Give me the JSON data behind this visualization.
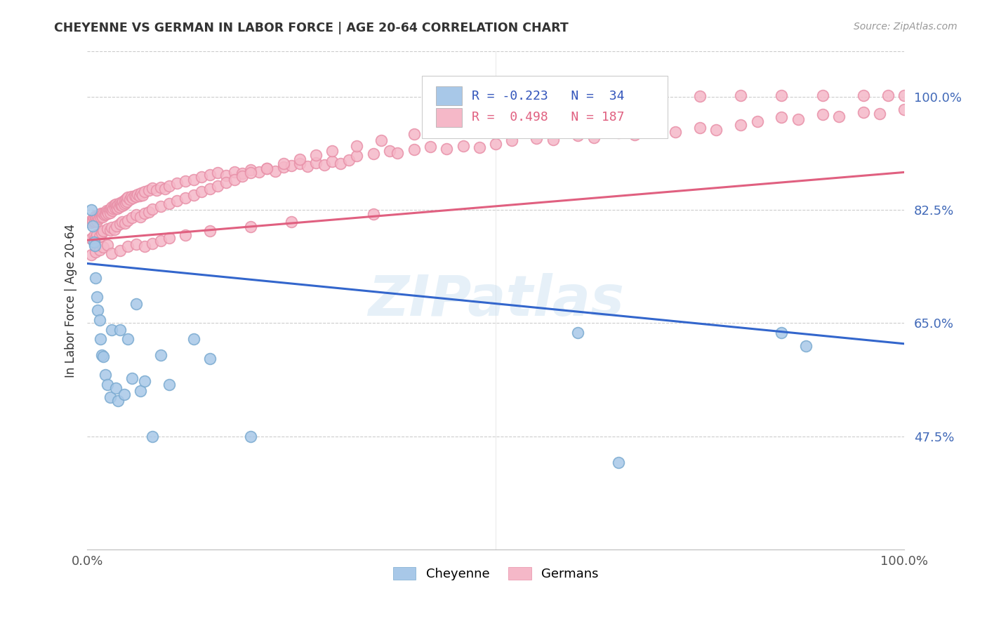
{
  "title": "CHEYENNE VS GERMAN IN LABOR FORCE | AGE 20-64 CORRELATION CHART",
  "source": "Source: ZipAtlas.com",
  "ylabel": "In Labor Force | Age 20-64",
  "xlim": [
    0.0,
    1.0
  ],
  "ylim": [
    0.3,
    1.07
  ],
  "yticks": [
    0.475,
    0.65,
    0.825,
    1.0
  ],
  "ytick_labels": [
    "47.5%",
    "65.0%",
    "82.5%",
    "100.0%"
  ],
  "xticks": [
    0.0,
    1.0
  ],
  "xtick_labels": [
    "0.0%",
    "100.0%"
  ],
  "cheyenne_color": "#a8c8e8",
  "cheyenne_edge_color": "#7aaad0",
  "german_color": "#f5b8c8",
  "german_edge_color": "#e890a8",
  "cheyenne_line_color": "#3366cc",
  "german_line_color": "#e06080",
  "watermark": "ZIPatlas",
  "cheyenne_line_start": 0.742,
  "cheyenne_line_end": 0.618,
  "german_line_start": 0.778,
  "german_line_end": 0.883,
  "cheyenne_x": [
    0.005,
    0.007,
    0.008,
    0.009,
    0.01,
    0.012,
    0.013,
    0.015,
    0.016,
    0.018,
    0.02,
    0.022,
    0.025,
    0.028,
    0.03,
    0.035,
    0.038,
    0.04,
    0.045,
    0.05,
    0.055,
    0.06,
    0.065,
    0.07,
    0.08,
    0.09,
    0.1,
    0.13,
    0.15,
    0.2,
    0.6,
    0.65,
    0.85,
    0.88
  ],
  "cheyenne_y": [
    0.825,
    0.8,
    0.775,
    0.77,
    0.72,
    0.69,
    0.67,
    0.655,
    0.625,
    0.6,
    0.598,
    0.57,
    0.555,
    0.535,
    0.64,
    0.55,
    0.53,
    0.64,
    0.54,
    0.625,
    0.565,
    0.68,
    0.545,
    0.56,
    0.475,
    0.6,
    0.555,
    0.625,
    0.595,
    0.475,
    0.635,
    0.435,
    0.635,
    0.615
  ],
  "german_x": [
    0.005,
    0.006,
    0.007,
    0.008,
    0.009,
    0.01,
    0.011,
    0.012,
    0.013,
    0.014,
    0.015,
    0.016,
    0.017,
    0.018,
    0.019,
    0.02,
    0.021,
    0.022,
    0.023,
    0.024,
    0.025,
    0.026,
    0.027,
    0.028,
    0.029,
    0.03,
    0.031,
    0.032,
    0.033,
    0.034,
    0.035,
    0.036,
    0.037,
    0.038,
    0.039,
    0.04,
    0.041,
    0.042,
    0.043,
    0.044,
    0.045,
    0.046,
    0.047,
    0.048,
    0.049,
    0.05,
    0.052,
    0.054,
    0.056,
    0.058,
    0.06,
    0.062,
    0.064,
    0.066,
    0.068,
    0.07,
    0.075,
    0.08,
    0.085,
    0.09,
    0.095,
    0.1,
    0.11,
    0.12,
    0.13,
    0.14,
    0.15,
    0.16,
    0.17,
    0.18,
    0.19,
    0.2,
    0.21,
    0.22,
    0.23,
    0.24,
    0.25,
    0.26,
    0.27,
    0.28,
    0.29,
    0.3,
    0.31,
    0.32,
    0.33,
    0.35,
    0.37,
    0.38,
    0.4,
    0.42,
    0.44,
    0.46,
    0.48,
    0.5,
    0.52,
    0.55,
    0.57,
    0.6,
    0.62,
    0.65,
    0.67,
    0.7,
    0.72,
    0.75,
    0.77,
    0.8,
    0.82,
    0.85,
    0.87,
    0.9,
    0.92,
    0.95,
    0.97,
    1.0,
    0.005,
    0.008,
    0.01,
    0.012,
    0.015,
    0.018,
    0.02,
    0.025,
    0.028,
    0.03,
    0.033,
    0.036,
    0.04,
    0.043,
    0.046,
    0.05,
    0.055,
    0.06,
    0.065,
    0.07,
    0.075,
    0.08,
    0.09,
    0.1,
    0.11,
    0.12,
    0.13,
    0.14,
    0.15,
    0.16,
    0.17,
    0.18,
    0.19,
    0.2,
    0.22,
    0.24,
    0.26,
    0.28,
    0.3,
    0.33,
    0.36,
    0.4,
    0.43,
    0.46,
    0.5,
    0.55,
    0.6,
    0.65,
    0.7,
    0.75,
    0.8,
    0.85,
    0.9,
    0.95,
    0.98,
    1.0,
    0.005,
    0.01,
    0.015,
    0.02,
    0.025,
    0.03,
    0.04,
    0.05,
    0.06,
    0.07,
    0.08,
    0.09,
    0.1,
    0.12,
    0.15,
    0.2,
    0.25,
    0.35
  ],
  "german_y": [
    0.805,
    0.81,
    0.808,
    0.812,
    0.806,
    0.815,
    0.812,
    0.808,
    0.815,
    0.812,
    0.818,
    0.814,
    0.82,
    0.816,
    0.814,
    0.82,
    0.817,
    0.821,
    0.818,
    0.824,
    0.822,
    0.819,
    0.825,
    0.821,
    0.826,
    0.829,
    0.824,
    0.827,
    0.832,
    0.828,
    0.834,
    0.83,
    0.827,
    0.833,
    0.829,
    0.836,
    0.832,
    0.835,
    0.831,
    0.838,
    0.834,
    0.84,
    0.836,
    0.842,
    0.838,
    0.844,
    0.841,
    0.845,
    0.843,
    0.847,
    0.846,
    0.849,
    0.847,
    0.851,
    0.848,
    0.853,
    0.855,
    0.858,
    0.855,
    0.86,
    0.857,
    0.862,
    0.866,
    0.869,
    0.872,
    0.876,
    0.879,
    0.882,
    0.878,
    0.884,
    0.881,
    0.887,
    0.883,
    0.889,
    0.885,
    0.891,
    0.893,
    0.896,
    0.892,
    0.898,
    0.894,
    0.9,
    0.896,
    0.902,
    0.908,
    0.912,
    0.916,
    0.913,
    0.918,
    0.922,
    0.919,
    0.924,
    0.921,
    0.927,
    0.932,
    0.936,
    0.933,
    0.94,
    0.937,
    0.944,
    0.941,
    0.948,
    0.945,
    0.952,
    0.949,
    0.956,
    0.962,
    0.968,
    0.965,
    0.972,
    0.969,
    0.976,
    0.973,
    0.98,
    0.78,
    0.785,
    0.782,
    0.787,
    0.784,
    0.789,
    0.792,
    0.796,
    0.793,
    0.798,
    0.795,
    0.8,
    0.803,
    0.807,
    0.804,
    0.809,
    0.813,
    0.817,
    0.814,
    0.819,
    0.822,
    0.826,
    0.83,
    0.835,
    0.839,
    0.843,
    0.848,
    0.853,
    0.857,
    0.862,
    0.867,
    0.872,
    0.877,
    0.882,
    0.889,
    0.896,
    0.903,
    0.91,
    0.916,
    0.924,
    0.932,
    0.942,
    0.95,
    0.958,
    0.966,
    0.975,
    0.982,
    0.989,
    0.995,
    1.001,
    1.002,
    1.002,
    1.002,
    1.002,
    1.002,
    1.002,
    0.755,
    0.76,
    0.763,
    0.767,
    0.771,
    0.758,
    0.762,
    0.768,
    0.772,
    0.768,
    0.773,
    0.777,
    0.781,
    0.786,
    0.792,
    0.799,
    0.807,
    0.818
  ]
}
